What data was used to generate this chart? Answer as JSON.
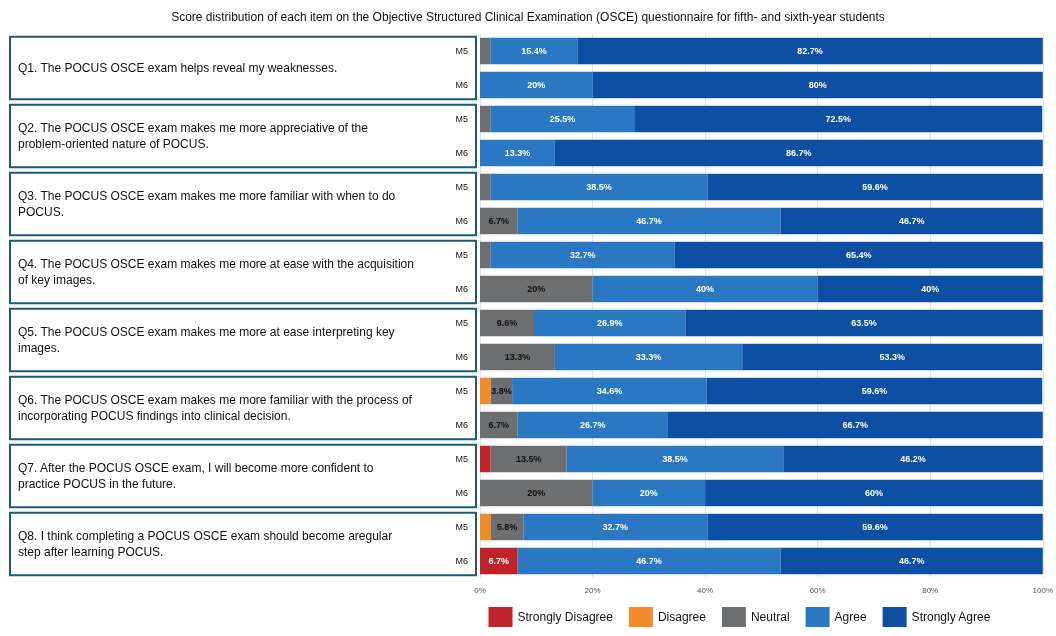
{
  "chart_data": {
    "type": "bar",
    "orientation": "horizontal",
    "stacked": true,
    "title": "Score distribution of each item on the Objective Structured Clinical Examination (OSCE) questionnaire for fifth- and sixth-year students",
    "categories": [
      "M5",
      "M6",
      "M5",
      "M6",
      "M5",
      "M6",
      "M5",
      "M6",
      "M5",
      "M6",
      "M5",
      "M6",
      "M5",
      "M6",
      "M5",
      "M6"
    ],
    "annotations": [
      "Q1. The POCUS OSCE exam helps reveal my weaknesses.",
      "Q2. The POCUS OSCE exam makes me more appreciative of the problem-oriented nature of POCUS.",
      "Q3. The POCUS OSCE exam makes me more familiar with when to do POCUS.",
      "Q4. The POCUS OSCE exam makes me more at ease with the acquisition of key images.",
      "Q5. The POCUS OSCE exam makes me more at ease interpreting key images.",
      "Q6. The POCUS OSCE exam makes me more familiar with the process of incorporating POCUS findings into clinical decision.",
      "Q7. After the POCUS OSCE exam, I will become more confident to practice POCUS in the future.",
      "Q8. I think completing a POCUS OSCE exam should become aregular step after learning POCUS."
    ],
    "series": [
      {
        "name": "Strongly Disagree",
        "color": "#c0242b",
        "values": [
          null,
          null,
          null,
          null,
          null,
          null,
          null,
          null,
          null,
          null,
          null,
          null,
          1.9,
          null,
          null,
          6.7
        ],
        "value_labels": [
          null,
          null,
          null,
          null,
          null,
          null,
          null,
          null,
          null,
          null,
          null,
          null,
          null,
          null,
          null,
          "6.7%"
        ]
      },
      {
        "name": "Disagree",
        "color": "#f28a2b",
        "values": [
          null,
          null,
          null,
          null,
          null,
          null,
          null,
          null,
          null,
          null,
          1.9,
          null,
          null,
          null,
          1.9,
          null
        ],
        "value_labels": [
          null,
          null,
          null,
          null,
          null,
          null,
          null,
          null,
          null,
          null,
          null,
          null,
          null,
          null,
          null,
          null
        ]
      },
      {
        "name": "Neutral",
        "color": "#6d6e70",
        "values": [
          1.9,
          null,
          1.9,
          null,
          1.9,
          6.7,
          1.9,
          20,
          9.6,
          13.3,
          3.8,
          6.7,
          13.5,
          20,
          5.8,
          null
        ],
        "value_labels": [
          null,
          null,
          null,
          null,
          null,
          "6.7%",
          null,
          "20%",
          "9.6%",
          "13.3%",
          "3.8%",
          "6.7%",
          "13.5%",
          "20%",
          "5.8%",
          null
        ]
      },
      {
        "name": "Agree",
        "color": "#2a78c2",
        "values": [
          15.4,
          20,
          25.5,
          13.3,
          38.5,
          46.7,
          32.7,
          40,
          26.9,
          33.3,
          34.6,
          26.7,
          38.5,
          20,
          32.7,
          46.7
        ],
        "value_labels": [
          "15.4%",
          "20%",
          "25.5%",
          "13.3%",
          "38.5%",
          "46.7%",
          "32.7%",
          "40%",
          "26.9%",
          "33.3%",
          "34.6%",
          "26.7%",
          "38.5%",
          "20%",
          "32.7%",
          "46.7%"
        ]
      },
      {
        "name": "Strongly Agree",
        "color": "#0d4fa3",
        "values": [
          82.7,
          80,
          72.5,
          86.7,
          59.6,
          46.7,
          65.4,
          40,
          63.5,
          53.3,
          59.6,
          66.7,
          46.2,
          60,
          59.6,
          46.7
        ],
        "value_labels": [
          "82.7%",
          "80%",
          "72.5%",
          "86.7%",
          "59.6%",
          "46.7%",
          "65.4%",
          "40%",
          "63.5%",
          "53.3%",
          "59.6%",
          "66.7%",
          "46.2%",
          "60%",
          "59.6%",
          "46.7%"
        ]
      }
    ],
    "xlim": [
      0,
      100
    ],
    "xticks": [
      {
        "value": 0,
        "label": "0%"
      },
      {
        "value": 20,
        "label": "20%"
      },
      {
        "value": 40,
        "label": "40%"
      },
      {
        "value": 60,
        "label": "60%"
      },
      {
        "value": 80,
        "label": "80%"
      },
      {
        "value": 100,
        "label": "100%"
      }
    ],
    "grid": "x",
    "legend": "bottom right"
  }
}
